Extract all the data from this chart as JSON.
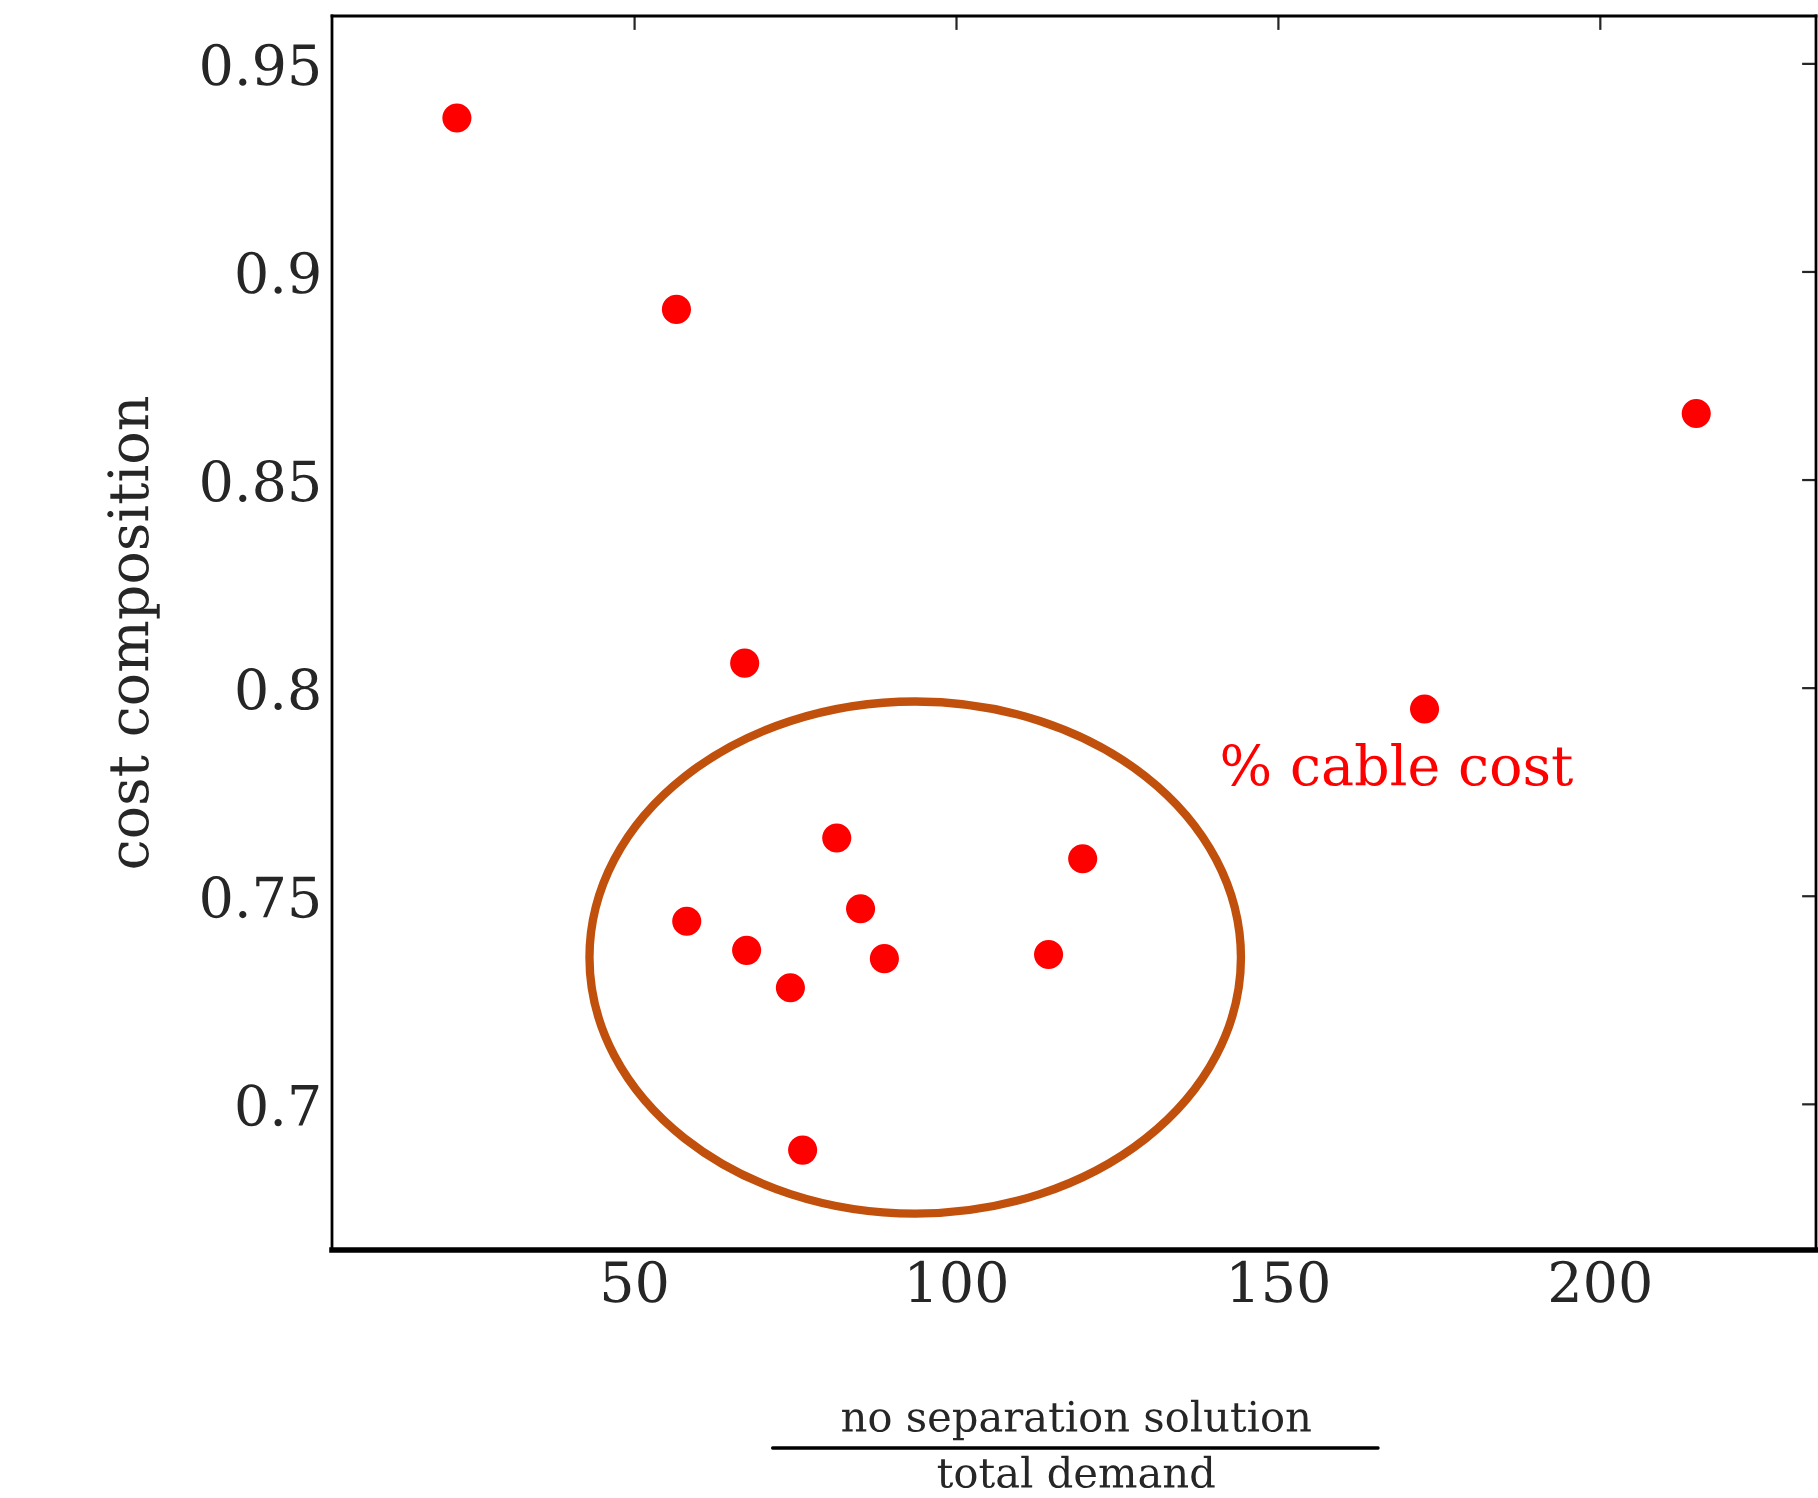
{
  "chart_data": {
    "type": "scatter",
    "xlabel": "no separation solution\ntotal demand",
    "ylabel": "cost composition",
    "series": [
      {
        "name": "% cable cost",
        "color": "#ff0000",
        "x": [
          22.4,
          56.5,
          214.9,
          67.1,
          172.7,
          81.4,
          119.6,
          58.1,
          85.1,
          67.4,
          74.2,
          88.8,
          114.3,
          76.1
        ],
        "values": [
          0.937,
          0.891,
          0.866,
          0.806,
          0.795,
          0.764,
          0.759,
          0.744,
          0.747,
          0.737,
          0.728,
          0.735,
          0.736,
          0.689
        ]
      }
    ],
    "xlim": [
      3,
      233.5
    ],
    "ylim": [
      0.665,
      0.9615
    ],
    "xticks": [
      50,
      100,
      150,
      200
    ],
    "yticks": [
      0.7,
      0.75,
      0.8,
      0.85,
      0.9,
      0.95
    ],
    "marker": "circle",
    "grid": false,
    "legend": false
  }
}
